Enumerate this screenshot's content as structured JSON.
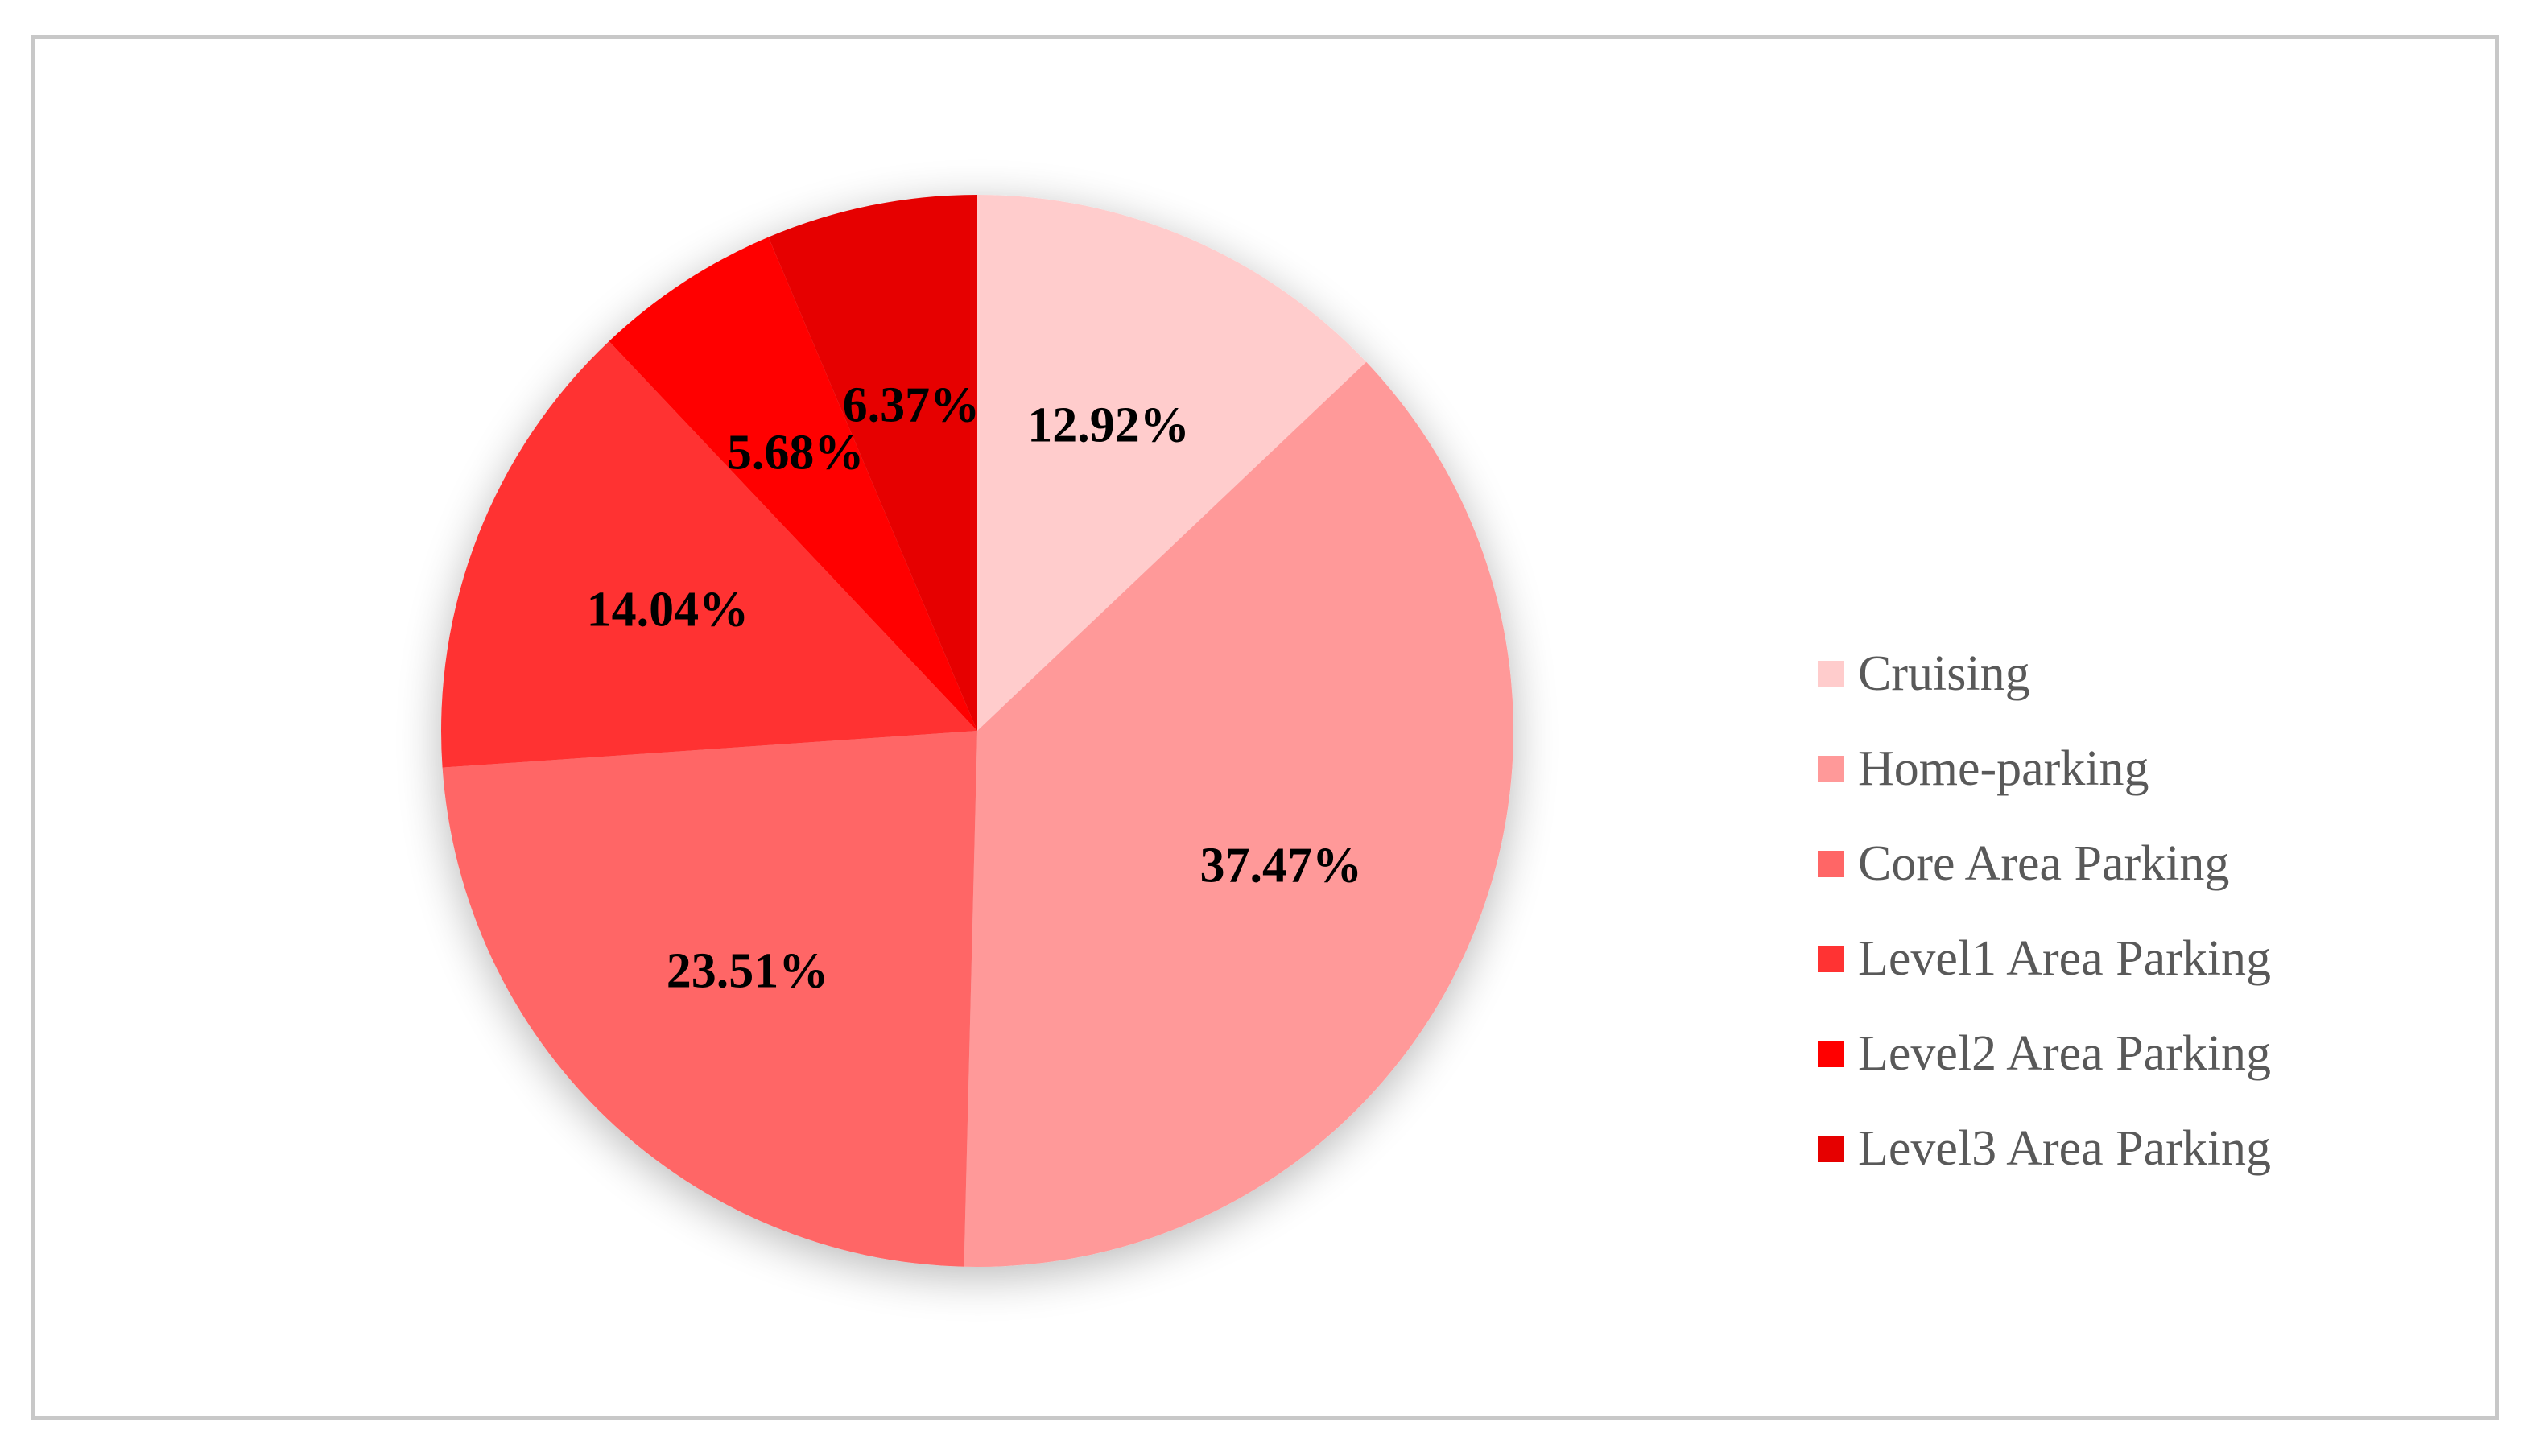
{
  "chart_data": {
    "type": "pie",
    "title": "",
    "legend_position": "right",
    "start_angle": "12 o'clock",
    "direction": "clockwise",
    "slices": [
      {
        "name": "Cruising",
        "value": 12.92,
        "label": "12.92%",
        "color": "#FFCCCC"
      },
      {
        "name": "Home-parking",
        "value": 37.47,
        "label": "37.47%",
        "color": "#FF9999"
      },
      {
        "name": "Core Area Parking",
        "value": 23.51,
        "label": "23.51%",
        "color": "#FF6666"
      },
      {
        "name": "Level1 Area Parking",
        "value": 14.04,
        "label": "14.04%",
        "color": "#FF3333"
      },
      {
        "name": "Level2 Area Parking",
        "value": 5.68,
        "label": "5.68%",
        "color": "#FF0000"
      },
      {
        "name": "Level3 Area Parking",
        "value": 6.37,
        "label": "6.37%",
        "color": "#E60000"
      }
    ]
  }
}
